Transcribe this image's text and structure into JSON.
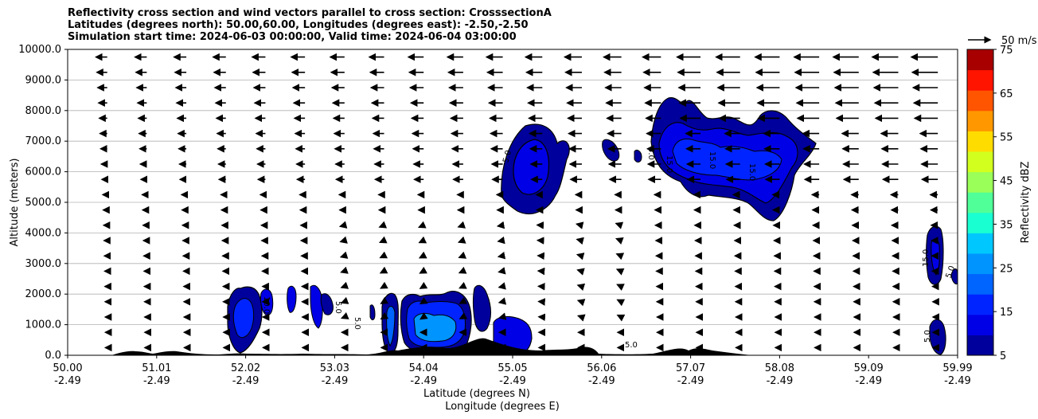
{
  "chart_data": {
    "type": "contour",
    "title_lines": [
      "Reflectivity cross section and wind vectors parallel to cross section: CrosssectionA",
      "Latitudes (degrees north): 50.00,60.00, Longitudes (degrees east): -2.50,-2.50",
      "Simulation start time: 2024-06-03 00:00:00, Valid time: 2024-06-04 03:00:00"
    ],
    "ylabel": "Altitude (meters)",
    "xlabel_lat": "Latitude (degrees N)",
    "xlabel_lon": "Longitude (degrees E)",
    "ylim": [
      0,
      10000
    ],
    "xlim": [
      50.0,
      59.99
    ],
    "y_ticks": [
      "0.0",
      "1000.0",
      "2000.0",
      "3000.0",
      "4000.0",
      "5000.0",
      "6000.0",
      "7000.0",
      "8000.0",
      "9000.0",
      "10000.0"
    ],
    "x_ticks_lat": [
      "50.00",
      "51.01",
      "52.02",
      "53.03",
      "54.04",
      "55.05",
      "56.06",
      "57.07",
      "58.08",
      "59.09",
      "59.99"
    ],
    "x_ticks_lon": [
      "-2.49",
      "-2.49",
      "-2.49",
      "-2.49",
      "-2.49",
      "-2.49",
      "-2.49",
      "-2.49",
      "-2.49",
      "-2.49",
      "-2.49"
    ],
    "grid": "horizontal",
    "colorbar": {
      "label": "Reflectivity dBZ",
      "levels": [
        5,
        10,
        15,
        20,
        25,
        30,
        35,
        40,
        45,
        50,
        55,
        60,
        65,
        70,
        75
      ],
      "tick_labels": [
        "5",
        "15",
        "25",
        "35",
        "45",
        "55",
        "65",
        "75"
      ],
      "colors": [
        "#00009c",
        "#0000e6",
        "#0024ff",
        "#0064ff",
        "#0094ff",
        "#00c8ff",
        "#1affd2",
        "#50ff98",
        "#9aff58",
        "#d2ff1e",
        "#ffdc00",
        "#ff9800",
        "#ff5400",
        "#ff1400",
        "#a80000"
      ]
    },
    "wind_key": "50 m/s",
    "contour_labels": [
      "5.0",
      "10.0",
      "15.0"
    ],
    "terrain_color": "#000000"
  }
}
